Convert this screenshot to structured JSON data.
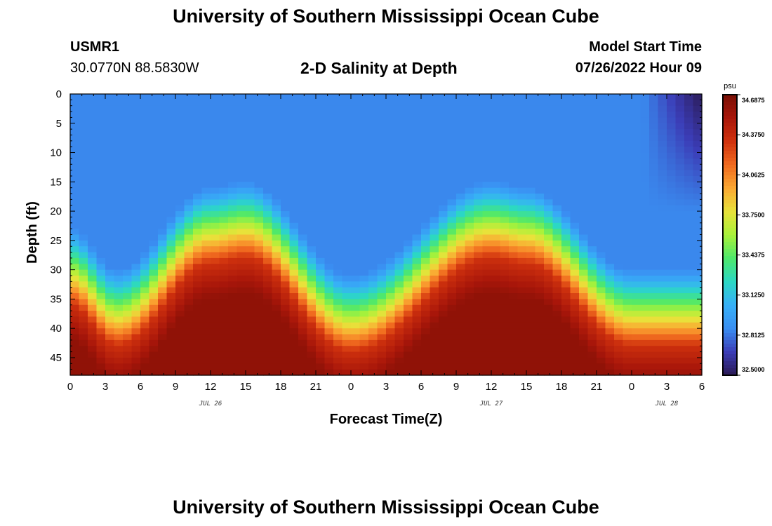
{
  "header": {
    "title": "University of Southern Mississippi Ocean Cube",
    "station_id": "USMR1",
    "station_coords": "30.0770N  88.5830W",
    "plot_title": "2-D Salinity at Depth",
    "model_start_label": "Model Start Time",
    "model_start_value": "07/26/2022 Hour 09"
  },
  "footer": {
    "title": "University of Southern Mississippi Ocean Cube"
  },
  "colors": {
    "colormap": [
      "#2b1a55",
      "#3b3db7",
      "#3a8ff2",
      "#37b0f7",
      "#2bd8c4",
      "#4ee86b",
      "#a9f23a",
      "#e8e23a",
      "#fba832",
      "#f06a1f",
      "#d0320e",
      "#a8160a",
      "#7a0f05"
    ]
  },
  "chart_data": {
    "type": "heatmap",
    "variable": "Salinity",
    "xlabel": "Forecast Time(Z)",
    "ylabel": "Depth (ft)",
    "xlim": [
      0,
      54
    ],
    "ylim": [
      0,
      48
    ],
    "y_reversed": true,
    "x_ticks": [
      0,
      3,
      6,
      9,
      12,
      15,
      18,
      21,
      24,
      27,
      30,
      33,
      36,
      39,
      42,
      45,
      48,
      51,
      54
    ],
    "x_tick_labels": [
      "0",
      "3",
      "6",
      "9",
      "12",
      "15",
      "18",
      "21",
      "0",
      "3",
      "6",
      "9",
      "12",
      "15",
      "18",
      "21",
      "0",
      "3",
      "6"
    ],
    "y_ticks": [
      0,
      5,
      10,
      15,
      20,
      25,
      30,
      35,
      40,
      45
    ],
    "y_tick_labels": [
      "0",
      "5",
      "10",
      "15",
      "20",
      "25",
      "30",
      "35",
      "40",
      "45"
    ],
    "date_labels": [
      {
        "x": 12,
        "label": "JUL 26"
      },
      {
        "x": 36,
        "label": "JUL 27"
      },
      {
        "x": 51,
        "label": "JUL 28"
      }
    ],
    "colorbar": {
      "unit": "psu",
      "min": 32.5,
      "max": 34.6875,
      "tick_values": [
        34.6875,
        34.375,
        34.0625,
        33.75,
        33.4375,
        33.125,
        32.8125,
        32.5
      ],
      "tick_labels": [
        "34.6875",
        "34.3750",
        "34.0625",
        "33.7500",
        "33.4375",
        "33.1250",
        "32.8125",
        "32.5000"
      ]
    },
    "salinity_profile": {
      "surface_psu": 32.85,
      "bottom_psu": 34.6,
      "deep_layer_top_depth_by_hour": [
        {
          "hour": 0,
          "depth_ft": 36
        },
        {
          "hour": 4,
          "depth_ft": 43
        },
        {
          "hour": 12,
          "depth_ft": 29
        },
        {
          "hour": 15,
          "depth_ft": 28
        },
        {
          "hour": 24,
          "depth_ft": 44
        },
        {
          "hour": 36,
          "depth_ft": 28
        },
        {
          "hour": 39,
          "depth_ft": 29
        },
        {
          "hour": 48,
          "depth_ft": 43
        },
        {
          "hour": 54,
          "depth_ft": 43
        }
      ],
      "fresh_surface_anomaly": {
        "start_hour": 49,
        "end_hour": 54,
        "max_depth_ft": 20,
        "min_psu": 32.5
      }
    }
  }
}
